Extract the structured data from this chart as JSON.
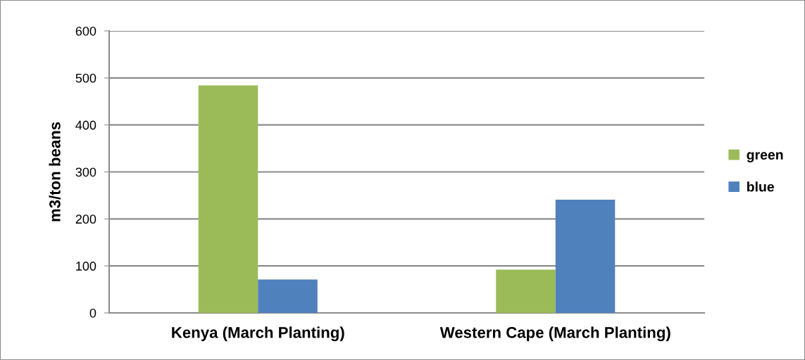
{
  "chart_data": {
    "type": "bar",
    "ylabel": "m3/ton beans",
    "categories": [
      "Kenya (March Planting)",
      "Western Cape (March Planting)"
    ],
    "series": [
      {
        "name": "green",
        "color": "#9bbb59",
        "values": [
          484,
          92
        ]
      },
      {
        "name": "blue",
        "color": "#4f81bd",
        "values": [
          71,
          241
        ]
      }
    ],
    "ylim": [
      0,
      600
    ],
    "yticks": [
      0,
      100,
      200,
      300,
      400,
      500,
      600
    ],
    "grid": "y",
    "legend": "right"
  }
}
